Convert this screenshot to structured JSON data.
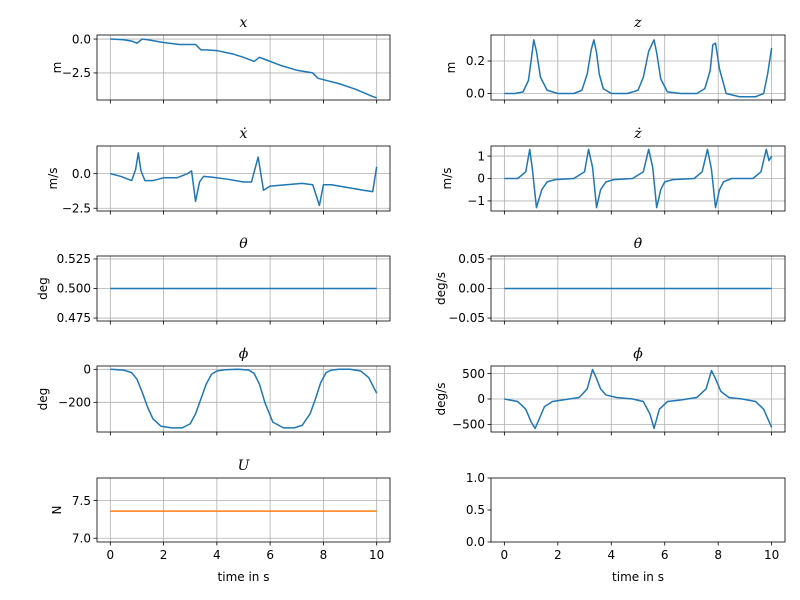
{
  "chart_data": [
    {
      "type": "line",
      "title": "x",
      "ylabel": "m",
      "xlabel": "",
      "xlim": [
        -0.5,
        10.5
      ],
      "ylim": [
        -4.5,
        0.3
      ],
      "xticks": [
        0,
        2,
        4,
        6,
        8,
        10
      ],
      "yticks": [
        0.0,
        -2.5
      ],
      "ytick_labels": [
        "0.0",
        "−2.5"
      ],
      "show_xtick_labels": false,
      "grid": true,
      "series": [
        {
          "color": "#1f77b4",
          "x": [
            0,
            0.5,
            0.8,
            1.0,
            1.2,
            1.4,
            2.0,
            2.6,
            3.2,
            3.4,
            3.6,
            4.0,
            4.6,
            5.0,
            5.4,
            5.6,
            5.8,
            6.4,
            7.0,
            7.6,
            7.8,
            8.0,
            8.6,
            9.2,
            9.8,
            10.0
          ],
          "y": [
            0.0,
            -0.05,
            -0.15,
            -0.3,
            0.0,
            -0.05,
            -0.25,
            -0.4,
            -0.4,
            -0.8,
            -0.8,
            -0.85,
            -1.1,
            -1.35,
            -1.65,
            -1.35,
            -1.5,
            -1.95,
            -2.3,
            -2.5,
            -2.9,
            -3.0,
            -3.3,
            -3.7,
            -4.2,
            -4.35
          ]
        }
      ]
    },
    {
      "type": "line",
      "title": "z",
      "ylabel": "m",
      "xlabel": "",
      "xlim": [
        -0.5,
        10.5
      ],
      "ylim": [
        -0.04,
        0.36
      ],
      "xticks": [
        0,
        2,
        4,
        6,
        8,
        10
      ],
      "yticks": [
        0.0,
        0.2
      ],
      "ytick_labels": [
        "0.0",
        "0.2"
      ],
      "show_xtick_labels": false,
      "grid": true,
      "series": [
        {
          "color": "#1f77b4",
          "x": [
            0,
            0.4,
            0.7,
            0.9,
            1.0,
            1.1,
            1.2,
            1.35,
            1.6,
            2.0,
            2.6,
            2.9,
            3.1,
            3.25,
            3.35,
            3.45,
            3.55,
            3.7,
            4.0,
            4.6,
            5.0,
            5.2,
            5.4,
            5.6,
            5.7,
            5.85,
            6.1,
            6.6,
            7.2,
            7.5,
            7.7,
            7.8,
            7.9,
            8.05,
            8.3,
            8.8,
            9.4,
            9.7,
            9.85,
            10.0
          ],
          "y": [
            0.0,
            0.0,
            0.01,
            0.08,
            0.2,
            0.33,
            0.26,
            0.1,
            0.02,
            0.0,
            0.0,
            0.02,
            0.12,
            0.27,
            0.33,
            0.25,
            0.12,
            0.03,
            0.0,
            0.0,
            0.02,
            0.1,
            0.26,
            0.33,
            0.25,
            0.09,
            0.01,
            0.0,
            0.0,
            0.03,
            0.14,
            0.3,
            0.31,
            0.15,
            0.0,
            -0.02,
            -0.02,
            0.0,
            0.12,
            0.28
          ]
        }
      ]
    },
    {
      "type": "line",
      "title": "ẋ",
      "ylabel": "m/s",
      "xlabel": "",
      "xlim": [
        -0.5,
        10.5
      ],
      "ylim": [
        -2.7,
        2.0
      ],
      "xticks": [
        0,
        2,
        4,
        6,
        8,
        10
      ],
      "yticks": [
        0.0,
        -2.5
      ],
      "ytick_labels": [
        "0.0",
        "−2.5"
      ],
      "show_xtick_labels": false,
      "grid": true,
      "series": [
        {
          "color": "#1f77b4",
          "x": [
            0,
            0.4,
            0.8,
            0.95,
            1.05,
            1.15,
            1.3,
            1.6,
            2.0,
            2.5,
            2.9,
            3.05,
            3.2,
            3.35,
            3.5,
            3.8,
            4.4,
            5.0,
            5.3,
            5.55,
            5.75,
            6.0,
            6.6,
            7.2,
            7.6,
            7.85,
            8.0,
            8.3,
            8.9,
            9.5,
            9.85,
            10.0
          ],
          "y": [
            0.0,
            -0.2,
            -0.5,
            0.3,
            1.5,
            0.2,
            -0.5,
            -0.5,
            -0.3,
            -0.3,
            0.0,
            0.2,
            -2.0,
            -0.6,
            -0.2,
            -0.25,
            -0.4,
            -0.6,
            -0.6,
            1.2,
            -1.2,
            -0.9,
            -0.8,
            -0.7,
            -0.8,
            -2.3,
            -0.8,
            -0.8,
            -1.0,
            -1.2,
            -1.3,
            0.5
          ]
        }
      ]
    },
    {
      "type": "line",
      "title": "ż",
      "ylabel": "m/s",
      "xlabel": "",
      "xlim": [
        -0.5,
        10.5
      ],
      "ylim": [
        -1.45,
        1.45
      ],
      "xticks": [
        0,
        2,
        4,
        6,
        8,
        10
      ],
      "yticks": [
        1,
        0,
        -1
      ],
      "ytick_labels": [
        "1",
        "0",
        "−1"
      ],
      "show_xtick_labels": false,
      "grid": true,
      "series": [
        {
          "color": "#1f77b4",
          "x": [
            0,
            0.5,
            0.8,
            0.95,
            1.05,
            1.2,
            1.4,
            1.6,
            1.9,
            2.6,
            3.0,
            3.15,
            3.3,
            3.45,
            3.6,
            3.8,
            4.1,
            4.8,
            5.2,
            5.4,
            5.55,
            5.7,
            5.85,
            6.0,
            6.3,
            7.1,
            7.4,
            7.6,
            7.75,
            7.9,
            8.05,
            8.2,
            8.5,
            9.3,
            9.6,
            9.8,
            9.9,
            10.0
          ],
          "y": [
            0.0,
            0.0,
            0.3,
            1.3,
            0.4,
            -1.3,
            -0.5,
            -0.15,
            -0.05,
            0.0,
            0.3,
            1.3,
            0.5,
            -1.3,
            -0.5,
            -0.15,
            -0.05,
            0.0,
            0.3,
            1.3,
            0.5,
            -1.3,
            -0.5,
            -0.15,
            -0.05,
            0.0,
            0.3,
            1.3,
            0.4,
            -1.3,
            -0.5,
            -0.15,
            0.0,
            0.0,
            0.3,
            1.3,
            0.8,
            1.0
          ]
        }
      ]
    },
    {
      "type": "line",
      "title": "θ",
      "ylabel": "deg",
      "xlabel": "",
      "xlim": [
        -0.5,
        10.5
      ],
      "ylim": [
        0.4725,
        0.5275
      ],
      "xticks": [
        0,
        2,
        4,
        6,
        8,
        10
      ],
      "yticks": [
        0.525,
        0.5,
        0.475
      ],
      "ytick_labels": [
        "0.525",
        "0.500",
        "0.475"
      ],
      "show_xtick_labels": false,
      "grid": true,
      "series": [
        {
          "color": "#1f77b4",
          "x": [
            0,
            10
          ],
          "y": [
            0.5,
            0.5
          ]
        }
      ]
    },
    {
      "type": "line",
      "title": "θ̇",
      "ylabel": "deg/s",
      "xlabel": "",
      "xlim": [
        -0.5,
        10.5
      ],
      "ylim": [
        -0.055,
        0.055
      ],
      "xticks": [
        0,
        2,
        4,
        6,
        8,
        10
      ],
      "yticks": [
        0.05,
        0.0,
        -0.05
      ],
      "ytick_labels": [
        "0.05",
        "0.00",
        "−0.05"
      ],
      "show_xtick_labels": false,
      "grid": true,
      "series": [
        {
          "color": "#1f77b4",
          "x": [
            0,
            10
          ],
          "y": [
            0.0,
            0.0
          ]
        }
      ]
    },
    {
      "type": "line",
      "title": "ϕ",
      "ylabel": "deg",
      "xlabel": "",
      "xlim": [
        -0.5,
        10.5
      ],
      "ylim": [
        -380,
        20
      ],
      "xticks": [
        0,
        2,
        4,
        6,
        8,
        10
      ],
      "yticks": [
        0,
        -200
      ],
      "ytick_labels": [
        "0",
        "−200"
      ],
      "show_xtick_labels": false,
      "grid": true,
      "series": [
        {
          "color": "#1f77b4",
          "x": [
            0,
            0.5,
            0.8,
            1.0,
            1.2,
            1.4,
            1.6,
            1.9,
            2.3,
            2.7,
            3.0,
            3.2,
            3.4,
            3.6,
            3.8,
            4.0,
            4.3,
            4.8,
            5.2,
            5.4,
            5.6,
            5.8,
            6.1,
            6.5,
            6.9,
            7.2,
            7.5,
            7.7,
            7.9,
            8.1,
            8.3,
            8.6,
            9.0,
            9.4,
            9.7,
            10.0
          ],
          "y": [
            0,
            -5,
            -20,
            -60,
            -140,
            -230,
            -300,
            -345,
            -355,
            -355,
            -330,
            -270,
            -180,
            -90,
            -30,
            -10,
            -3,
            0,
            -5,
            -25,
            -90,
            -200,
            -320,
            -355,
            -355,
            -340,
            -270,
            -180,
            -80,
            -20,
            -5,
            0,
            0,
            -10,
            -50,
            -145
          ]
        }
      ]
    },
    {
      "type": "line",
      "title": "ϕ̇",
      "ylabel": "deg/s",
      "xlabel": "",
      "xlim": [
        -0.5,
        10.5
      ],
      "ylim": [
        -650,
        650
      ],
      "xticks": [
        0,
        2,
        4,
        6,
        8,
        10
      ],
      "yticks": [
        500,
        0,
        -500
      ],
      "ytick_labels": [
        "500",
        "0",
        "−500"
      ],
      "show_xtick_labels": false,
      "grid": true,
      "series": [
        {
          "color": "#1f77b4",
          "x": [
            0,
            0.5,
            0.8,
            1.0,
            1.15,
            1.3,
            1.5,
            1.8,
            2.3,
            2.8,
            3.1,
            3.3,
            3.45,
            3.6,
            3.8,
            4.2,
            4.8,
            5.2,
            5.45,
            5.6,
            5.8,
            6.1,
            6.6,
            7.2,
            7.55,
            7.75,
            7.9,
            8.1,
            8.4,
            8.9,
            9.4,
            9.7,
            10.0
          ],
          "y": [
            0,
            -50,
            -200,
            -450,
            -580,
            -400,
            -150,
            -50,
            -10,
            30,
            200,
            580,
            400,
            200,
            80,
            30,
            0,
            -50,
            -300,
            -580,
            -200,
            -50,
            -20,
            30,
            200,
            560,
            400,
            150,
            30,
            0,
            -50,
            -200,
            -560
          ]
        }
      ]
    },
    {
      "type": "line",
      "title": "U",
      "ylabel": "N",
      "xlabel": "time in s",
      "xlim": [
        -0.5,
        10.5
      ],
      "ylim": [
        6.95,
        7.8
      ],
      "xticks": [
        0,
        2,
        4,
        6,
        8,
        10
      ],
      "yticks": [
        7.5,
        7.0
      ],
      "ytick_labels": [
        "7.5",
        "7.0"
      ],
      "show_xtick_labels": true,
      "xtick_labels": [
        "0",
        "2",
        "4",
        "6",
        "8",
        "10"
      ],
      "grid": true,
      "series": [
        {
          "color": "#ff7f0e",
          "x": [
            0,
            10
          ],
          "y": [
            7.36,
            7.36
          ]
        }
      ]
    },
    {
      "type": "line",
      "title": "",
      "ylabel": "",
      "xlabel": "time in s",
      "xlim": [
        -0.5,
        10.5
      ],
      "ylim": [
        0.0,
        1.0
      ],
      "xticks": [
        0,
        2,
        4,
        6,
        8,
        10
      ],
      "yticks": [
        1.0,
        0.5,
        0.0
      ],
      "ytick_labels": [
        "1.0",
        "0.5",
        "0.0"
      ],
      "show_xtick_labels": true,
      "xtick_labels": [
        "0",
        "2",
        "4",
        "6",
        "8",
        "10"
      ],
      "grid": false,
      "series": []
    }
  ]
}
